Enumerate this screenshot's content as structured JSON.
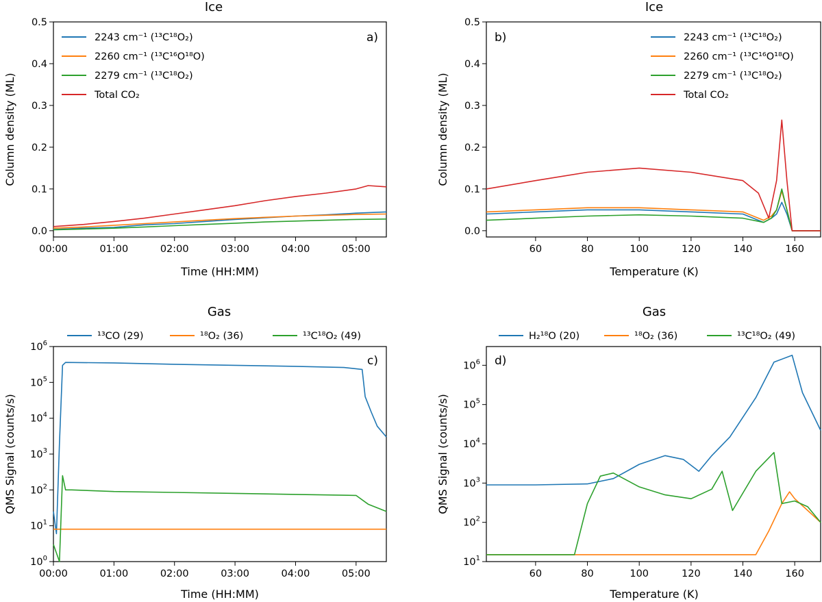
{
  "colors": {
    "blue": "#1f77b4",
    "orange": "#ff7f0e",
    "green": "#2ca02c",
    "red": "#d62728"
  },
  "chart_data": [
    {
      "id": "a",
      "type": "line",
      "title": "Ice",
      "panel_label": "a)",
      "xlabel": "Time (HH:MM)",
      "ylabel": "Column density (ML)",
      "xlim": [
        0,
        5.5
      ],
      "ylim": [
        -0.015,
        0.5
      ],
      "xticks": [
        0,
        1,
        2,
        3,
        4,
        5
      ],
      "xtick_labels": [
        "00:00",
        "01:00",
        "02:00",
        "03:00",
        "04:00",
        "05:00"
      ],
      "yticks": [
        0,
        0.1,
        0.2,
        0.3,
        0.4,
        0.5
      ],
      "ytick_labels": [
        "0.0",
        "0.1",
        "0.2",
        "0.3",
        "0.4",
        "0.5"
      ],
      "legend": "top-left",
      "series": [
        {
          "name": "2243 cm⁻¹ (¹³C¹⁸O₂)",
          "color": "#1f77b4",
          "x": [
            0,
            0.5,
            1,
            1.5,
            2,
            2.5,
            3,
            3.5,
            4,
            4.5,
            5,
            5.5
          ],
          "y": [
            0.003,
            0.006,
            0.008,
            0.014,
            0.017,
            0.022,
            0.027,
            0.031,
            0.035,
            0.038,
            0.042,
            0.045
          ]
        },
        {
          "name": "2260 cm⁻¹ (¹³C¹⁶O¹⁸O)",
          "color": "#ff7f0e",
          "x": [
            0,
            0.5,
            1,
            1.5,
            2,
            2.5,
            3,
            3.5,
            4,
            4.5,
            5,
            5.5
          ],
          "y": [
            0.006,
            0.009,
            0.013,
            0.017,
            0.021,
            0.025,
            0.029,
            0.032,
            0.035,
            0.037,
            0.039,
            0.04
          ]
        },
        {
          "name": "2279 cm⁻¹ (¹³C¹⁸O₂)",
          "color": "#2ca02c",
          "x": [
            0,
            0.5,
            1,
            1.5,
            2,
            2.5,
            3,
            3.5,
            4,
            4.5,
            5,
            5.5
          ],
          "y": [
            0.002,
            0.004,
            0.006,
            0.009,
            0.012,
            0.015,
            0.018,
            0.021,
            0.023,
            0.025,
            0.027,
            0.028
          ]
        },
        {
          "name": "Total CO₂",
          "color": "#d62728",
          "x": [
            0,
            0.5,
            1,
            1.5,
            2,
            2.5,
            3,
            3.5,
            4,
            4.5,
            5,
            5.2,
            5.5
          ],
          "y": [
            0.01,
            0.015,
            0.022,
            0.03,
            0.04,
            0.05,
            0.06,
            0.072,
            0.082,
            0.09,
            0.1,
            0.108,
            0.105
          ]
        }
      ]
    },
    {
      "id": "b",
      "type": "line",
      "title": "Ice",
      "panel_label": "b)",
      "xlabel": "Temperature (K)",
      "ylabel": "Column density (ML)",
      "xlim": [
        41,
        170
      ],
      "ylim": [
        -0.015,
        0.5
      ],
      "xticks": [
        60,
        80,
        100,
        120,
        140,
        160
      ],
      "xtick_labels": [
        "60",
        "80",
        "100",
        "120",
        "140",
        "160"
      ],
      "yticks": [
        0,
        0.1,
        0.2,
        0.3,
        0.4,
        0.5
      ],
      "ytick_labels": [
        "0.0",
        "0.1",
        "0.2",
        "0.3",
        "0.4",
        "0.5"
      ],
      "legend": "top-right",
      "series": [
        {
          "name": "2243 cm⁻¹ (¹³C¹⁸O₂)",
          "color": "#1f77b4",
          "x": [
            41,
            60,
            80,
            100,
            120,
            140,
            148,
            151,
            153,
            155,
            157,
            159,
            170
          ],
          "y": [
            0.04,
            0.045,
            0.05,
            0.05,
            0.045,
            0.04,
            0.02,
            0.03,
            0.04,
            0.068,
            0.04,
            0.0,
            0.0
          ]
        },
        {
          "name": "2260 cm⁻¹ (¹³C¹⁶O¹⁸O)",
          "color": "#ff7f0e",
          "x": [
            41,
            60,
            80,
            100,
            120,
            140,
            148,
            151,
            153,
            155,
            157,
            159,
            170
          ],
          "y": [
            0.045,
            0.05,
            0.055,
            0.055,
            0.05,
            0.045,
            0.025,
            0.035,
            0.05,
            0.095,
            0.05,
            0.0,
            0.0
          ]
        },
        {
          "name": "2279 cm⁻¹ (¹³C¹⁸O₂)",
          "color": "#2ca02c",
          "x": [
            41,
            60,
            80,
            100,
            120,
            140,
            148,
            151,
            153,
            155,
            157,
            159,
            170
          ],
          "y": [
            0.025,
            0.03,
            0.035,
            0.038,
            0.035,
            0.03,
            0.02,
            0.03,
            0.05,
            0.1,
            0.05,
            0.0,
            0.0
          ]
        },
        {
          "name": "Total CO₂",
          "color": "#d62728",
          "x": [
            41,
            60,
            80,
            100,
            120,
            140,
            146,
            150,
            153,
            155,
            157,
            159,
            170
          ],
          "y": [
            0.1,
            0.12,
            0.14,
            0.15,
            0.14,
            0.12,
            0.09,
            0.03,
            0.12,
            0.265,
            0.12,
            0.0,
            0.0
          ]
        }
      ]
    },
    {
      "id": "c",
      "type": "line",
      "title": "Gas",
      "panel_label": "c)",
      "xlabel": "Time (HH:MM)",
      "ylabel": "QMS Signal (counts/s)",
      "xlim": [
        0,
        5.5
      ],
      "ylim": [
        1,
        1000000
      ],
      "yscale": "log",
      "xticks": [
        0,
        1,
        2,
        3,
        4,
        5
      ],
      "xtick_labels": [
        "00:00",
        "01:00",
        "02:00",
        "03:00",
        "04:00",
        "05:00"
      ],
      "ytick_exps": [
        "0",
        "1",
        "2",
        "3",
        "4",
        "5",
        "6"
      ],
      "legend": "top-center",
      "series": [
        {
          "name": "¹³CO (29)",
          "color": "#1f77b4",
          "x": [
            0,
            0.05,
            0.1,
            0.15,
            0.2,
            1,
            2,
            3,
            4,
            4.8,
            5.1,
            5.15,
            5.25,
            5.35,
            5.5
          ],
          "y": [
            25,
            6,
            2000,
            300000,
            360000,
            350000,
            320000,
            300000,
            280000,
            260000,
            230000,
            40000,
            15000,
            6000,
            3000
          ]
        },
        {
          "name": "¹⁸O₂ (36)",
          "color": "#ff7f0e",
          "x": [
            0,
            5.5
          ],
          "y": [
            8,
            8
          ]
        },
        {
          "name": "¹³C¹⁸O₂ (49)",
          "color": "#2ca02c",
          "x": [
            0,
            0.1,
            0.15,
            0.2,
            0.3,
            1,
            2,
            3,
            4,
            5,
            5.2,
            5.5
          ],
          "y": [
            3,
            1,
            250,
            100,
            100,
            90,
            85,
            80,
            75,
            70,
            40,
            25
          ]
        }
      ]
    },
    {
      "id": "d",
      "type": "line",
      "title": "Gas",
      "panel_label": "d)",
      "xlabel": "Temperature (K)",
      "ylabel": "QMS Signal (counts/s)",
      "xlim": [
        41,
        170
      ],
      "ylim": [
        10,
        3000000
      ],
      "yscale": "log",
      "xticks": [
        60,
        80,
        100,
        120,
        140,
        160
      ],
      "xtick_labels": [
        "60",
        "80",
        "100",
        "120",
        "140",
        "160"
      ],
      "ytick_exps": [
        "1",
        "2",
        "3",
        "4",
        "5",
        "6"
      ],
      "legend": "top-center",
      "series": [
        {
          "name": "H₂¹⁸O (20)",
          "color": "#1f77b4",
          "x": [
            41,
            60,
            80,
            90,
            100,
            110,
            117,
            123,
            128,
            135,
            145,
            152,
            159,
            163,
            170
          ],
          "y": [
            900,
            900,
            950,
            1300,
            3000,
            5000,
            4000,
            2000,
            5000,
            15000,
            150000,
            1200000,
            1800000,
            200000,
            22000
          ]
        },
        {
          "name": "¹⁸O₂ (36)",
          "color": "#ff7f0e",
          "x": [
            41,
            145,
            150,
            155,
            158,
            160,
            165,
            170
          ],
          "y": [
            15,
            15,
            60,
            300,
            600,
            400,
            200,
            100
          ]
        },
        {
          "name": "¹³C¹⁸O₂ (49)",
          "color": "#2ca02c",
          "x": [
            41,
            75,
            80,
            85,
            90,
            100,
            110,
            120,
            128,
            132,
            136,
            145,
            152,
            155,
            160,
            165,
            170
          ],
          "y": [
            15,
            15,
            300,
            1500,
            1800,
            800,
            500,
            400,
            700,
            2000,
            200,
            2000,
            6000,
            300,
            350,
            250,
            100
          ]
        }
      ]
    }
  ]
}
